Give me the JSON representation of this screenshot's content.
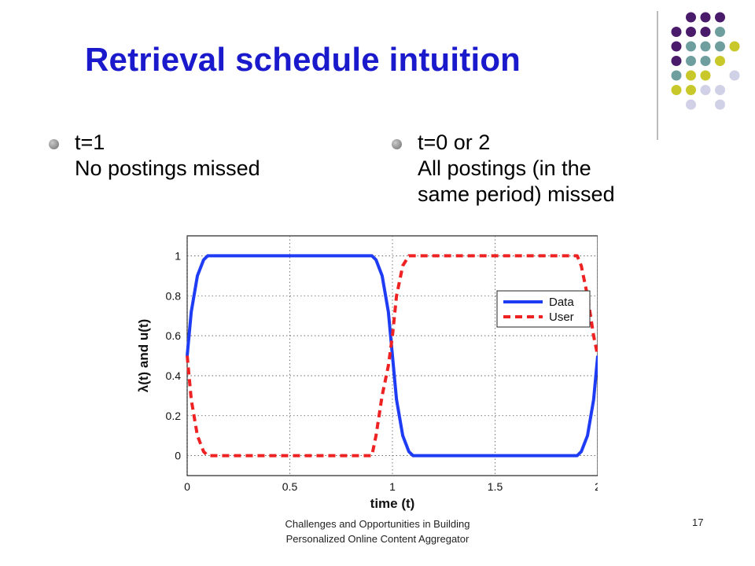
{
  "slide": {
    "title": "Retrieval schedule intuition",
    "bullets": [
      {
        "text": "t=1\nNo postings missed"
      },
      {
        "text": "t=0 or 2\nAll postings (in the\nsame period) missed"
      }
    ],
    "footer": "Challenges and Opportunities in Building\nPersonalized Online Content Aggregator",
    "page_number": "17"
  },
  "decoration": {
    "dot_colors": {
      "purple": "#4a1a6b",
      "teal": "#6e9e9e",
      "olive": "#c8c82a",
      "lavender": "#d0d0e6"
    },
    "title_color": "#1a1acc"
  },
  "chart_data": {
    "type": "line",
    "xlabel": "time (t)",
    "ylabel": "λ(t) and u(t)",
    "xlim": [
      0,
      2
    ],
    "ylim": [
      -0.1,
      1.1
    ],
    "xticks": [
      "0",
      "0.5",
      "1",
      "1.5",
      "2"
    ],
    "yticks": [
      "0",
      "0.2",
      "0.4",
      "0.6",
      "0.8",
      "1"
    ],
    "grid": true,
    "legend_position": "right",
    "series": [
      {
        "name": "Data",
        "color": "#1f3cf5",
        "style": "solid",
        "x": [
          0,
          0.02,
          0.05,
          0.08,
          0.1,
          0.9,
          0.92,
          0.95,
          0.98,
          1.0,
          1.02,
          1.05,
          1.08,
          1.1,
          1.9,
          1.92,
          1.95,
          1.98,
          2.0
        ],
        "y": [
          0.5,
          0.72,
          0.9,
          0.98,
          1.0,
          1.0,
          0.98,
          0.9,
          0.72,
          0.5,
          0.28,
          0.1,
          0.02,
          0.0,
          0.0,
          0.02,
          0.1,
          0.28,
          0.5
        ]
      },
      {
        "name": "User",
        "color": "#ee2222",
        "style": "dashed",
        "x": [
          0,
          0.02,
          0.05,
          0.08,
          0.1,
          0.9,
          0.92,
          0.95,
          0.98,
          1.0,
          1.02,
          1.05,
          1.08,
          1.1,
          1.9,
          1.92,
          1.95,
          1.98,
          2.0
        ],
        "y": [
          0.5,
          0.28,
          0.1,
          0.02,
          0.0,
          0.0,
          0.1,
          0.3,
          0.45,
          0.6,
          0.8,
          0.95,
          1.0,
          1.0,
          1.0,
          0.95,
          0.8,
          0.6,
          0.5
        ]
      }
    ]
  }
}
